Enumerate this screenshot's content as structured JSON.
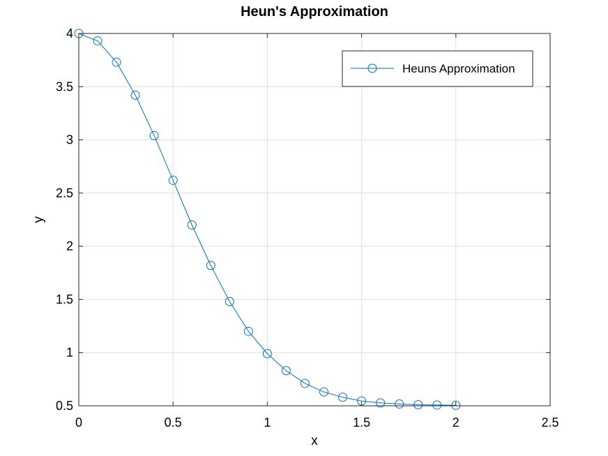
{
  "chart_data": {
    "type": "line",
    "title": "Heun's Approximation",
    "xlabel": "x",
    "ylabel": "y",
    "xlim": [
      0,
      2.5
    ],
    "ylim": [
      0.5,
      4
    ],
    "xticks": [
      0,
      0.5,
      1,
      1.5,
      2,
      2.5
    ],
    "xtick_labels": [
      "0",
      "0.5",
      "1",
      "1.5",
      "2",
      "2.5"
    ],
    "yticks": [
      0.5,
      1,
      1.5,
      2,
      2.5,
      3,
      3.5,
      4
    ],
    "ytick_labels": [
      "0.5",
      "1",
      "1.5",
      "2",
      "2.5",
      "3",
      "3.5",
      "4"
    ],
    "grid": true,
    "legend_position": "top-right",
    "series": [
      {
        "name": "Heuns Approximation",
        "color": "#0072bd",
        "marker": "circle",
        "x": [
          0,
          0.1,
          0.2,
          0.3,
          0.4,
          0.5,
          0.6,
          0.7,
          0.8,
          0.9,
          1.0,
          1.1,
          1.2,
          1.3,
          1.4,
          1.5,
          1.6,
          1.7,
          1.8,
          1.9,
          2.0
        ],
        "y": [
          4.0,
          3.93,
          3.73,
          3.42,
          3.04,
          2.62,
          2.2,
          1.82,
          1.48,
          1.2,
          0.99,
          0.83,
          0.71,
          0.63,
          0.58,
          0.545,
          0.527,
          0.517,
          0.51,
          0.507,
          0.505
        ]
      }
    ]
  }
}
